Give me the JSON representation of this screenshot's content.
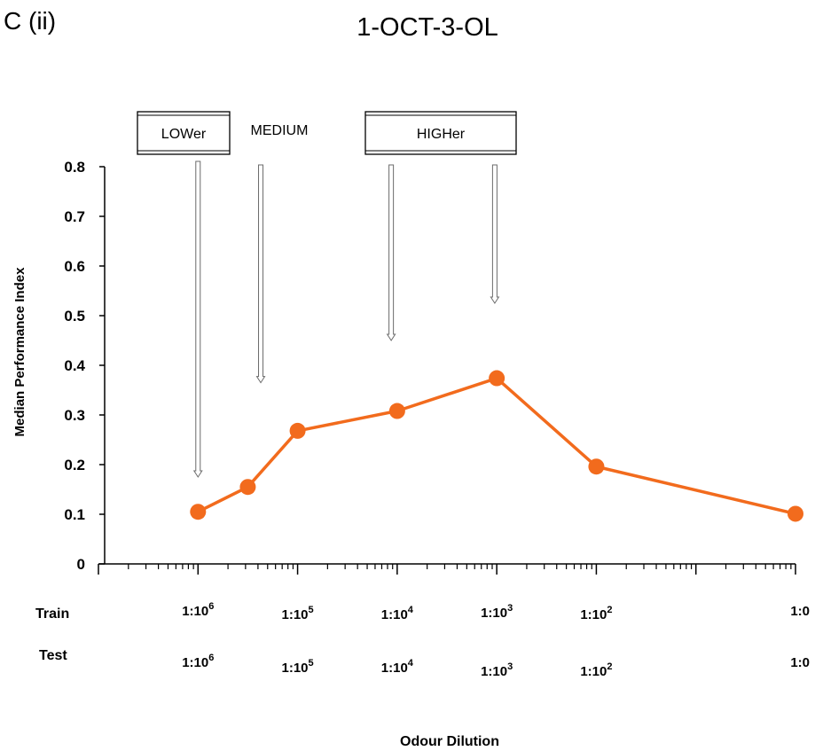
{
  "panel_label": "C (ii)",
  "chart_data": {
    "type": "line",
    "title": "1-OCT-3-OL",
    "xlabel": "Odour Dilution",
    "ylabel": "Median Performance Index",
    "ylim": [
      0,
      0.8
    ],
    "yticks": [
      "0",
      "0.1",
      "0.2",
      "0.3",
      "0.4",
      "0.5",
      "0.6",
      "0.7",
      "0.8"
    ],
    "x_scale": "log",
    "x_range_log10_dilution": [
      -7,
      0
    ],
    "grid": false,
    "series": [
      {
        "color": "#F26B1D",
        "points": [
          {
            "x": "1:10^6",
            "log10": -6.0,
            "y": 0.105
          },
          {
            "x": "1:10^5.5",
            "log10": -5.5,
            "y": 0.155
          },
          {
            "x": "1:10^5",
            "log10": -5.0,
            "y": 0.268
          },
          {
            "x": "1:10^4",
            "log10": -4.0,
            "y": 0.308
          },
          {
            "x": "1:10^3",
            "log10": -3.0,
            "y": 0.374
          },
          {
            "x": "1:10^2",
            "log10": -2.0,
            "y": 0.196
          },
          {
            "x": "1:0",
            "log10": 0.0,
            "y": 0.101
          }
        ]
      }
    ],
    "row_labels": {
      "train": "Train",
      "test": "Test"
    },
    "train_dilutions": [
      {
        "base": "1:10",
        "exp": "6",
        "log10": -6
      },
      {
        "base": "1:10",
        "exp": "5",
        "log10": -5
      },
      {
        "base": "1:10",
        "exp": "4",
        "log10": -4
      },
      {
        "base": "1:10",
        "exp": "3",
        "log10": -3
      },
      {
        "base": "1:10",
        "exp": "2",
        "log10": -2
      },
      {
        "base": "1:0",
        "exp": "",
        "log10": 0
      }
    ],
    "test_dilutions": [
      {
        "base": "1:10",
        "exp": "6",
        "log10": -6
      },
      {
        "base": "1:10",
        "exp": "5",
        "log10": -5
      },
      {
        "base": "1:10",
        "exp": "4",
        "log10": -4
      },
      {
        "base": "1:10",
        "exp": "3",
        "log10": -3
      },
      {
        "base": "1:10",
        "exp": "2",
        "log10": -2
      },
      {
        "base": "1:0",
        "exp": "",
        "log10": 0
      }
    ],
    "annotations": {
      "boxes": [
        {
          "label": "LOWer",
          "framed": true
        },
        {
          "label": "MEDIUM",
          "framed": false
        },
        {
          "label": "HIGHer",
          "framed": true
        }
      ],
      "arrows": [
        {
          "log10": -6.0,
          "y_end": 0.175
        },
        {
          "log10": -5.37,
          "y_end": 0.365
        },
        {
          "log10": -4.06,
          "y_end": 0.45
        },
        {
          "log10": -3.02,
          "y_end": 0.525
        }
      ]
    }
  }
}
